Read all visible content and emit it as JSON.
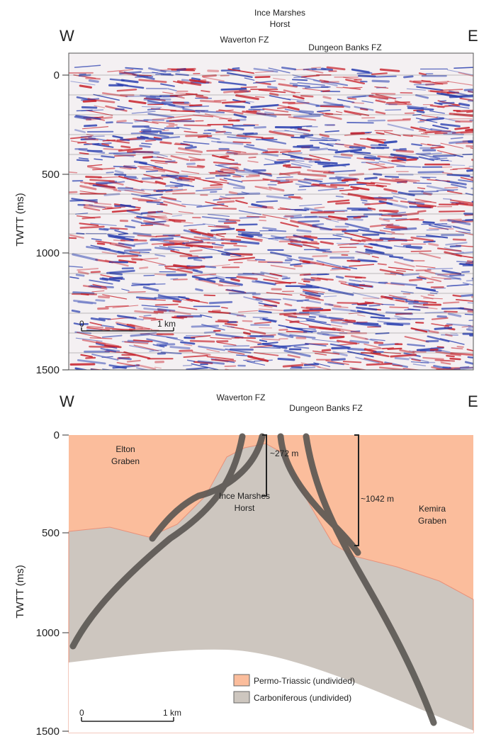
{
  "top_panel": {
    "west": "W",
    "east": "E",
    "horst_label": [
      "Ince Marshes",
      "Horst"
    ],
    "fault_1": "Waverton FZ",
    "fault_2": "Dungeon Banks FZ",
    "y_axis_label": "TWTT (ms)",
    "y_ticks": [
      0,
      500,
      1000,
      1500
    ],
    "scale_bar": {
      "start": "0",
      "end": "1 km"
    }
  },
  "bottom_panel": {
    "west": "W",
    "east": "E",
    "fault_1": "Waverton FZ",
    "fault_2": "Dungeon Banks FZ",
    "y_axis_label": "TWTT (ms)",
    "y_ticks": [
      0,
      500,
      1000,
      1500
    ],
    "throw_1": "~272 m",
    "throw_2": "~1042 m",
    "elton_graben": [
      "Elton",
      "Graben"
    ],
    "kemira_graben": [
      "Kemira",
      "Graben"
    ],
    "horst": [
      "Ince Marshes",
      "Horst"
    ],
    "legend": [
      "Permo-Triassic (undivided)",
      "Carboniferous (undivided)"
    ],
    "scale_bar": {
      "start": "0",
      "end": "1 km"
    }
  }
}
